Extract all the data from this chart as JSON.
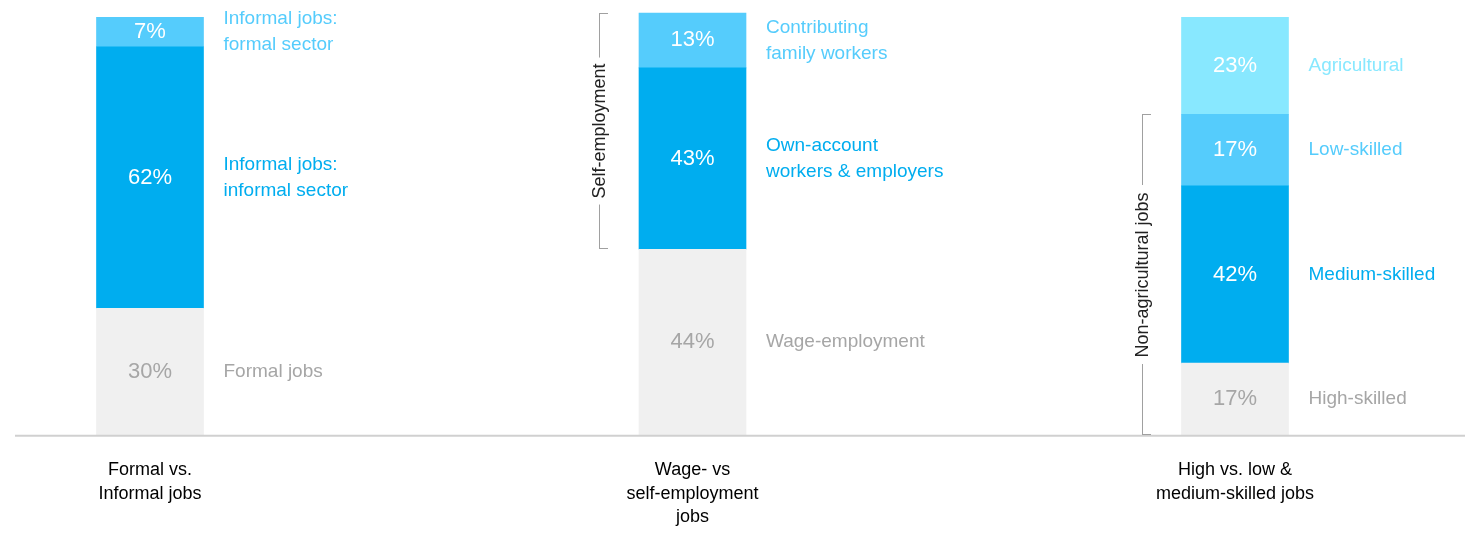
{
  "chart_data": {
    "type": "bar",
    "stacked": true,
    "categories": [
      "Formal vs.\nInformal jobs",
      "Wage- vs\nself-employment\njobs",
      "High vs. low &\nmedium-skilled jobs"
    ],
    "series": [
      {
        "name": "Formal jobs",
        "color": "#f0f0f0",
        "values": [
          30,
          null,
          null
        ],
        "value_labels": [
          "30%",
          null,
          null
        ]
      },
      {
        "name": "Informal jobs:\ninformal sector",
        "color": "#00adef",
        "values": [
          62,
          null,
          null
        ],
        "value_labels": [
          "62%",
          null,
          null
        ]
      },
      {
        "name": "Informal jobs:\nformal sector",
        "color": "#55ccfc",
        "values": [
          7,
          null,
          null
        ],
        "value_labels": [
          "7%",
          null,
          null
        ]
      },
      {
        "name": "Wage-employment",
        "color": "#f0f0f0",
        "values": [
          null,
          44,
          null
        ],
        "value_labels": [
          null,
          "44%",
          null
        ]
      },
      {
        "name": "Own-account\nworkers & employers",
        "color": "#00adef",
        "values": [
          null,
          43,
          null
        ],
        "value_labels": [
          null,
          "43%",
          null
        ]
      },
      {
        "name": "Contributing\nfamily workers",
        "color": "#55ccfc",
        "values": [
          null,
          13,
          null
        ],
        "value_labels": [
          null,
          "13%",
          null
        ]
      },
      {
        "name": "High-skilled",
        "color": "#f0f0f0",
        "values": [
          null,
          null,
          17
        ],
        "value_labels": [
          null,
          null,
          "17%"
        ]
      },
      {
        "name": "Medium-skilled",
        "color": "#00adef",
        "values": [
          null,
          null,
          42
        ],
        "value_labels": [
          null,
          null,
          "42%"
        ]
      },
      {
        "name": "Low-skilled",
        "color": "#55ccfc",
        "values": [
          null,
          null,
          17
        ],
        "value_labels": [
          null,
          null,
          "17%"
        ]
      },
      {
        "name": "Agricultural",
        "color": "#88e8ff",
        "values": [
          null,
          null,
          23
        ],
        "value_labels": [
          null,
          null,
          "23%"
        ]
      }
    ],
    "annotations": [
      "Self-employment",
      "Non-agricultural jobs"
    ]
  }
}
